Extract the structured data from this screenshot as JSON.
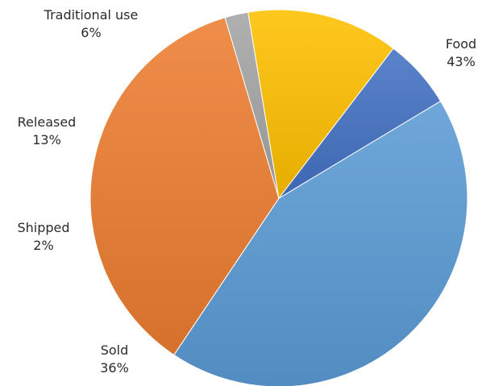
{
  "chart_data": {
    "type": "pie",
    "title": "",
    "legend": "none",
    "start_angle_deg": -31,
    "direction": "clockwise",
    "slices": [
      {
        "name": "Food",
        "value": 43,
        "label": "43%",
        "color": "#5b9bd5"
      },
      {
        "name": "Sold",
        "value": 36,
        "label": "36%",
        "color": "#ed7d31"
      },
      {
        "name": "Shipped",
        "value": 2,
        "label": "2%",
        "color": "#a5a5a5"
      },
      {
        "name": "Released",
        "value": 13,
        "label": "13%",
        "color": "#ffc000"
      },
      {
        "name": "Traditional use",
        "value": 6,
        "label": "6%",
        "color": "#4472c4"
      }
    ]
  }
}
